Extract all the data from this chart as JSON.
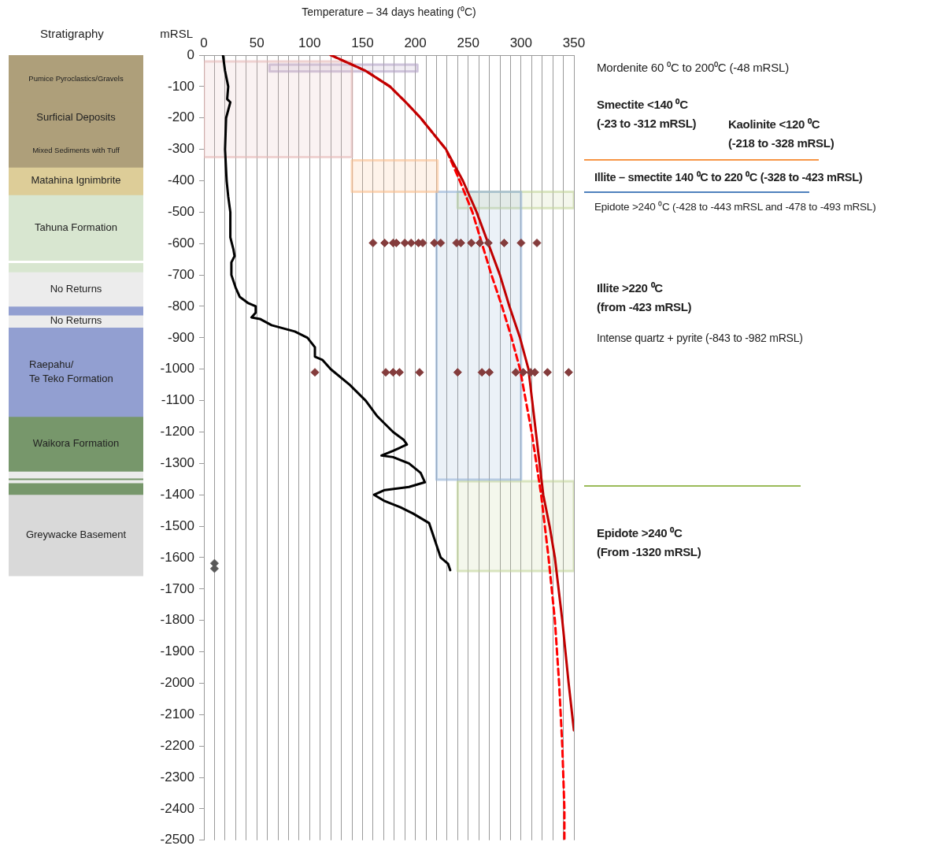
{
  "chart_data": [
    {
      "type": "bar",
      "title": "Stratigraphy",
      "categories": [
        null
      ],
      "stacked": true,
      "ylim": [
        -2500,
        0
      ],
      "tick_labels": false,
      "legend": false,
      "series": [
        {
          "name": "Pumice Pyroclastics/Gravels",
          "color": "#ae9f7a",
          "values": [
            -150
          ]
        },
        {
          "name": "Surficial Deposits",
          "color": "#ae9f7a",
          "values": [
            -100
          ]
        },
        {
          "name": "Mixed Sediments with Tuff",
          "color": "#ae9f7a",
          "values": [
            -107
          ]
        },
        {
          "name": "Matahina Ignimbrite",
          "color": "#ddcd98",
          "values": [
            -88
          ]
        },
        {
          "name": "Tahuna Formation",
          "color": "#d8e6d0",
          "values": [
            -209
          ]
        },
        {
          "color": "#ffffff",
          "values": [
            -7
          ]
        },
        {
          "color": "#d8e6d0",
          "values": [
            -30
          ]
        },
        {
          "name": "No Returns",
          "color": "#ececec",
          "values": [
            -109
          ]
        },
        {
          "color": "#929fd1",
          "values": [
            -28
          ]
        },
        {
          "name": "No Returns",
          "color": "#ececec",
          "values": [
            -39
          ]
        },
        {
          "name": "Raepahu/\nTe Teko Formation",
          "color": "#929fd1",
          "values": [
            -284
          ]
        },
        {
          "name": "Waikora Formation",
          "color": "#77976b",
          "values": [
            -174
          ]
        },
        {
          "color": "#ececec",
          "values": [
            -22
          ]
        },
        {
          "color": "#77976b",
          "values": [
            -5
          ]
        },
        {
          "color": "#ececec",
          "values": [
            -10
          ]
        },
        {
          "color": "#77976b",
          "values": [
            -37
          ]
        },
        {
          "name": "Greywacke Basement",
          "color": "#d9d9d9",
          "values": [
            -259
          ]
        }
      ]
    },
    {
      "type": "line",
      "xlabel": "Temperature – 34 days heating (⁰C)",
      "ylabel": "mRSL",
      "xlim": [
        0,
        350
      ],
      "xticks": [
        0,
        {
          "value": 10,
          "label": null
        },
        {
          "value": 20,
          "label": null
        },
        {
          "value": 30,
          "label": null
        },
        {
          "value": 40,
          "label": null
        },
        50,
        {
          "value": 60,
          "label": null
        },
        {
          "value": 70,
          "label": null
        },
        {
          "value": 80,
          "label": null
        },
        {
          "value": 90,
          "label": null
        },
        100,
        {
          "value": 110,
          "label": null
        },
        {
          "value": 120,
          "label": null
        },
        {
          "value": 130,
          "label": null
        },
        {
          "value": 140,
          "label": null
        },
        150,
        {
          "value": 160,
          "label": null
        },
        {
          "value": 170,
          "label": null
        },
        {
          "value": 180,
          "label": null
        },
        {
          "value": 190,
          "label": null
        },
        200,
        {
          "value": 210,
          "label": null
        },
        {
          "value": 220,
          "label": null
        },
        {
          "value": 230,
          "label": null
        },
        {
          "value": 240,
          "label": null
        },
        250,
        {
          "value": 260,
          "label": null
        },
        {
          "value": 270,
          "label": null
        },
        {
          "value": 280,
          "label": null
        },
        {
          "value": 290,
          "label": null
        },
        300,
        {
          "value": 310,
          "label": null
        },
        {
          "value": 320,
          "label": null
        },
        {
          "value": 330,
          "label": null
        },
        {
          "value": 340,
          "label": null
        },
        350
      ],
      "ylim": [
        -2500,
        0
      ],
      "yticks": [
        -2500,
        -2400,
        -2300,
        -2200,
        -2100,
        -2000,
        -1900,
        -1800,
        -1700,
        -1600,
        -1500,
        -1400,
        -1300,
        -1200,
        -1100,
        -1000,
        -900,
        -800,
        -700,
        -600,
        -500,
        -400,
        -300,
        -200,
        -100,
        0
      ],
      "grid": "x",
      "legend": false,
      "marker": "none",
      "line_style": "solid",
      "series": [
        {
          "type": "area",
          "color": "#e6b9b8",
          "x": [
            0,
            140,
            140,
            0,
            0
          ],
          "values": [
            -20,
            -20,
            -325,
            -325,
            -20
          ]
        },
        {
          "type": "area",
          "color": "#b3a2c7",
          "x": [
            62,
            202,
            202,
            62,
            62
          ],
          "values": [
            -30,
            -30,
            -52,
            -52,
            -30
          ]
        },
        {
          "type": "area",
          "color": "#fac090",
          "x": [
            140,
            221,
            221,
            140,
            140
          ],
          "values": [
            -335,
            -335,
            -435,
            -435,
            -335
          ]
        },
        {
          "type": "area",
          "color": "#95b3d7",
          "x": [
            220,
            300,
            300,
            220,
            220
          ],
          "values": [
            -435,
            -435,
            -1352,
            -1352,
            -435
          ]
        },
        {
          "type": "area",
          "color": "#c3d69b",
          "x": [
            240,
            350,
            350,
            240,
            240
          ],
          "values": [
            -435,
            -435,
            -487,
            -487,
            -435
          ]
        },
        {
          "type": "area",
          "color": "#c3d69b",
          "x": [
            240,
            350,
            350,
            240,
            240
          ],
          "values": [
            -1357,
            -1357,
            -1643,
            -1643,
            -1357
          ]
        },
        {
          "type": "line",
          "color": "#000000",
          "x": [
            18,
            20,
            23,
            22,
            25,
            21,
            20,
            21.5,
            23,
            25,
            25,
            28,
            29,
            26,
            26,
            30,
            34,
            42,
            49,
            49,
            45,
            53,
            64,
            86,
            98,
            105,
            105,
            112,
            120,
            138,
            153,
            164,
            179,
            189,
            192,
            179,
            168,
            179,
            194,
            205,
            209,
            194,
            171,
            161,
            171,
            186,
            198,
            213,
            216,
            220,
            224,
            231,
            233
          ],
          "values": [
            0,
            -50,
            -100,
            -140,
            -150,
            -200,
            -300,
            -400,
            -450,
            -500,
            -580,
            -620,
            -640,
            -660,
            -700,
            -740,
            -770,
            -790,
            -800,
            -820,
            -835,
            -840,
            -860,
            -880,
            -900,
            -930,
            -960,
            -970,
            -1000,
            -1050,
            -1100,
            -1150,
            -1200,
            -1225,
            -1240,
            -1260,
            -1275,
            -1280,
            -1300,
            -1330,
            -1360,
            -1375,
            -1385,
            -1400,
            -1420,
            -1440,
            -1460,
            -1490,
            -1520,
            -1560,
            -1600,
            -1620,
            -1640
          ]
        },
        {
          "type": "line",
          "color": "#c00000",
          "x": [
            120,
            153,
            176,
            191,
            205,
            229,
            245,
            258,
            269,
            280,
            289,
            299,
            307,
            314,
            321,
            327,
            332,
            339,
            345,
            350
          ],
          "values": [
            0,
            -50,
            -100,
            -150,
            -200,
            -300,
            -400,
            -500,
            -600,
            -700,
            -800,
            -900,
            -1000,
            -1200,
            -1400,
            -1500,
            -1600,
            -1800,
            -2000,
            -2150
          ]
        },
        {
          "type": "line",
          "color": "#ff0000",
          "line_style": "dashed",
          "x": [
            120,
            153,
            176,
            191,
            205,
            229,
            242,
            254,
            263,
            272,
            282,
            291,
            299,
            310,
            319,
            326,
            332,
            336,
            339,
            341,
            341
          ],
          "values": [
            0,
            -50,
            -100,
            -150,
            -200,
            -300,
            -400,
            -500,
            -600,
            -700,
            -800,
            -900,
            -1000,
            -1200,
            -1400,
            -1600,
            -1800,
            -2000,
            -2200,
            -2400,
            -2500
          ]
        },
        {
          "type": "scatter",
          "color": "#843c3c",
          "marker": "diamond",
          "x": [
            160,
            171,
            179,
            182,
            190,
            196,
            203,
            207,
            218,
            224,
            239,
            243,
            253,
            261,
            269,
            284,
            300,
            315
          ],
          "values": [
            -598,
            -598,
            -598,
            -598,
            -598,
            -598,
            -598,
            -598,
            -598,
            -598,
            -598,
            -598,
            -598,
            -598,
            -598,
            -598,
            -598,
            -598
          ]
        },
        {
          "type": "scatter",
          "color": "#843c3c",
          "marker": "diamond",
          "x": [
            105,
            172,
            179,
            185,
            204,
            240,
            263,
            270,
            295,
            302,
            309,
            313,
            325,
            345
          ],
          "values": [
            -1010,
            -1010,
            -1010,
            -1010,
            -1010,
            -1010,
            -1010,
            -1010,
            -1010,
            -1010,
            -1010,
            -1010,
            -1010,
            -1010
          ]
        },
        {
          "type": "scatter",
          "color": "#595959",
          "marker": "diamond",
          "x": [
            10,
            10
          ],
          "values": [
            -1618,
            -1635
          ]
        }
      ],
      "annotations": [
        "Mordenite 60 ⁰C to 200⁰C (-48 mRSL)",
        "Smectite <140 ⁰C\n(-23 to -312 mRSL)",
        "Kaolinite <120 ⁰C\n(-218 to -328 mRSL)",
        "Illite – smectite 140 ⁰C to 220 ⁰C (-328 to -423 mRSL)",
        "Epidote >240 ⁰C (-428 to -443 mRSL and -478 to -493 mRSL)",
        "Illite >220 ⁰C\n(from -423 mRSL)",
        "Intense quartz + pyrite (-843 to -982 mRSL)",
        "Epidote >240 ⁰C\n(From -1320 mRSL)"
      ]
    }
  ]
}
